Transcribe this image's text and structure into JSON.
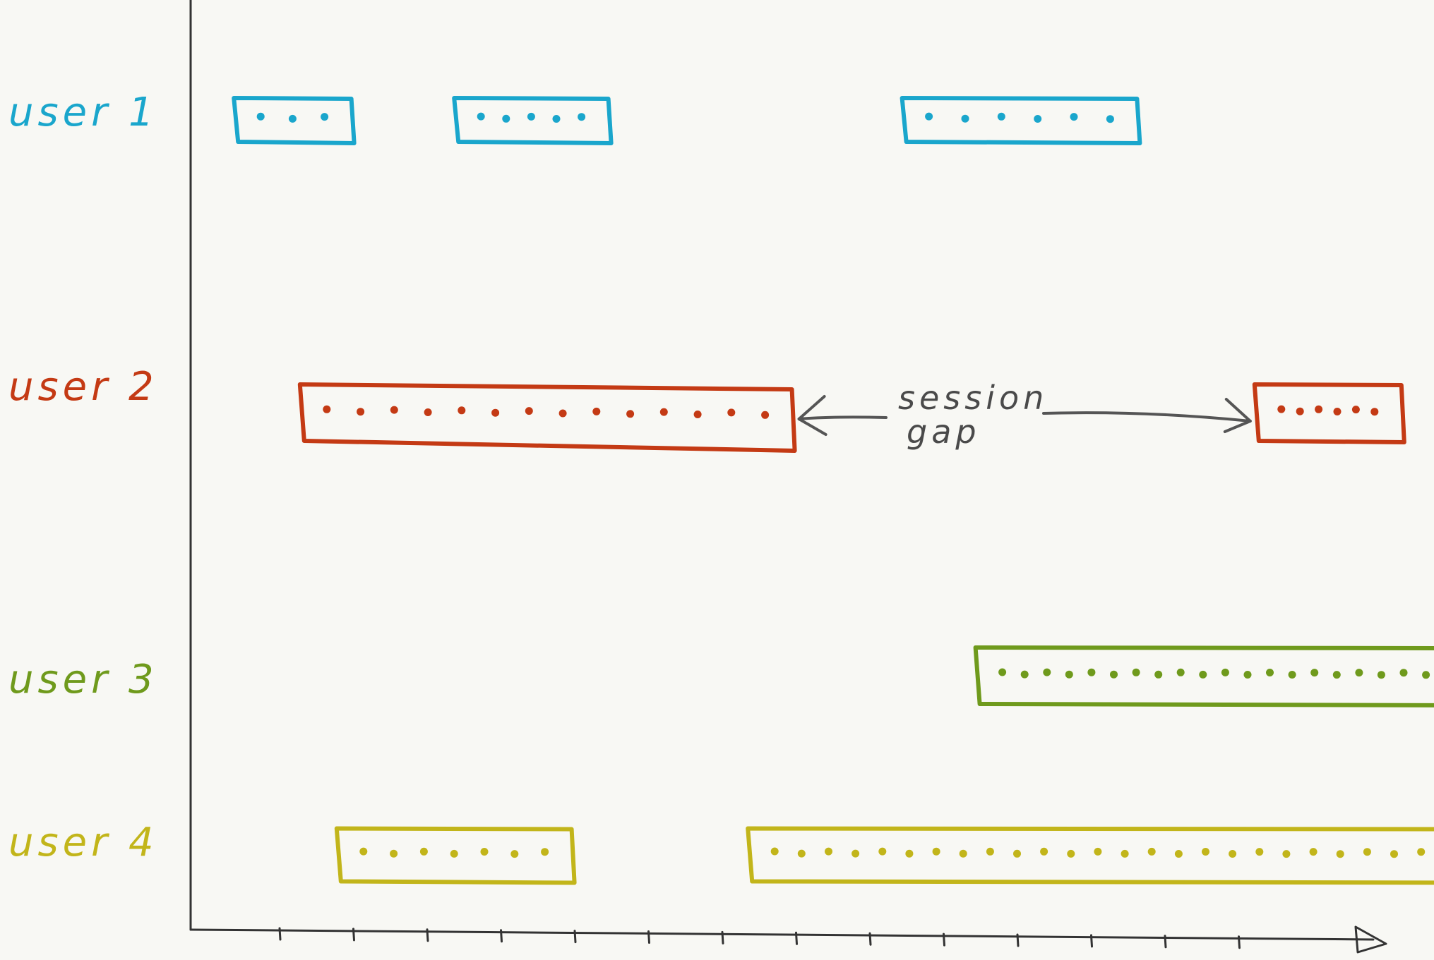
{
  "annotation": {
    "line1": "session",
    "line2": "gap"
  },
  "colors": {
    "user1": "#1aa6cc",
    "user2": "#c43a14",
    "user3": "#6f9a1c",
    "user4": "#c2b51a",
    "axis": "#333333",
    "arrow": "#555555"
  },
  "chart_data": {
    "type": "timeline",
    "x_ticks_count": 14,
    "users": [
      {
        "label": "user 1",
        "color_key": "user1",
        "sessions": [
          {
            "start": 0.3,
            "end": 1.9,
            "events": 3
          },
          {
            "start": 3.3,
            "end": 5.4,
            "events": 5
          },
          {
            "start": 9.4,
            "end": 12.6,
            "events": 6
          }
        ]
      },
      {
        "label": "user 2",
        "color_key": "user2",
        "sessions": [
          {
            "start": 1.2,
            "end": 7.9,
            "events": 14
          },
          {
            "start": 14.2,
            "end": 16.2,
            "events": 6
          }
        ]
      },
      {
        "label": "user 3",
        "color_key": "user3",
        "sessions": [
          {
            "start": 10.4,
            "end": 16.9,
            "events": 20
          }
        ]
      },
      {
        "label": "user 4",
        "color_key": "user4",
        "sessions": [
          {
            "start": 1.7,
            "end": 4.9,
            "events": 7
          },
          {
            "start": 7.3,
            "end": 17.2,
            "events": 26
          }
        ]
      }
    ],
    "gap": {
      "user_index": 1,
      "from_session": 0,
      "to_session": 1
    }
  }
}
